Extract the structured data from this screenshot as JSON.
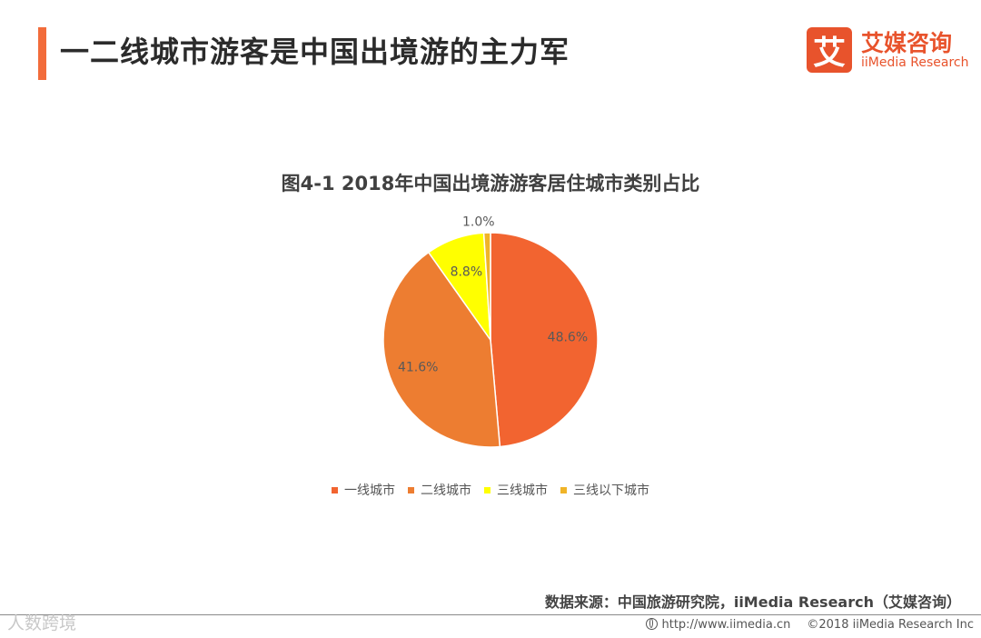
{
  "header": {
    "title": "一二线城市游客是中国出境游的主力军",
    "accent_color": "#f26c3b"
  },
  "logo": {
    "mark": "艾",
    "name_cn": "艾媒咨询",
    "name_en": "iiMedia Research",
    "color": "#e8532c"
  },
  "chart_data": {
    "type": "pie",
    "title": "图4-1 2018年中国出境游游客居住城市类别占比",
    "categories": [
      "一线城市",
      "二线城市",
      "三线城市",
      "三线以下城市"
    ],
    "values": [
      48.6,
      41.6,
      8.8,
      1.0
    ],
    "labels": [
      "48.6%",
      "41.6%",
      "8.8%",
      "1.0%"
    ],
    "colors": [
      "#f26430",
      "#ed7d31",
      "#ffff00",
      "#f0b428"
    ],
    "start_angle_deg": 0,
    "direction": "clockwise",
    "legend_position": "bottom"
  },
  "footer": {
    "source": "数据来源：中国旅游研究院，iiMedia Research（艾媒咨询）",
    "watermark": "人数跨境",
    "url": "http://www.iimedia.cn",
    "copyright": "©2018  iiMedia Research  Inc"
  }
}
